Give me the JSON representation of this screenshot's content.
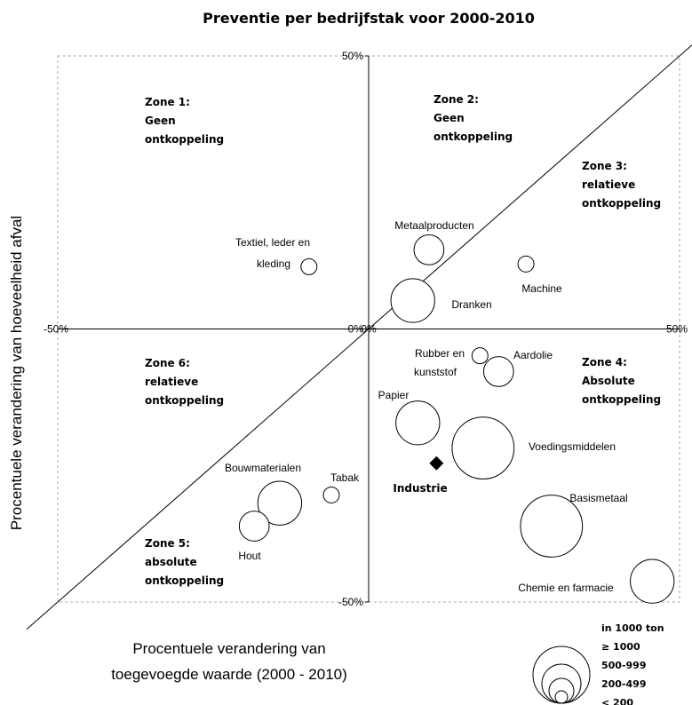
{
  "chart_data": {
    "type": "bubble",
    "title": "Preventie per bedrijfstak voor 2000-2010",
    "xlabel": [
      "Procentuele verandering van",
      "toegevoegde waarde (2000 - 2010)"
    ],
    "ylabel": "Procentuele verandering van hoeveelheid afval",
    "xlim": [
      -50,
      50
    ],
    "ylim": [
      -50,
      50
    ],
    "xticks": [
      {
        "value": -50,
        "label": "-50%"
      },
      {
        "value": 0,
        "label": "0%"
      },
      {
        "value": 50,
        "label": "50%"
      }
    ],
    "yticks": [
      {
        "value": -50,
        "label": "-50%"
      },
      {
        "value": 0,
        "label": "0%"
      },
      {
        "value": 50,
        "label": "50%"
      }
    ],
    "color": "#ffffff",
    "zones": [
      [
        "Zone 1:",
        "Geen",
        "ontkoppeling"
      ],
      [
        "Zone 2:",
        "Geen",
        "ontkoppeling"
      ],
      [
        "Zone 3:",
        "relatieve",
        "ontkoppeling"
      ],
      [
        "Zone 4:",
        "Absolute",
        "ontkoppeling"
      ],
      [
        "Zone 5:",
        "absolute",
        "ontkoppeling"
      ],
      [
        "Zone 6:",
        "relatieve",
        "ontkoppeling"
      ]
    ],
    "points": [
      {
        "label": [
          "Textiel, leder en",
          "kleding"
        ],
        "x": -9.6,
        "y": 11.4,
        "size": 100
      },
      {
        "label": [
          "Metaalproducten"
        ],
        "x": 9.7,
        "y": 14.5,
        "size": 350
      },
      {
        "label": [
          "Machine"
        ],
        "x": 25.3,
        "y": 11.9,
        "size": 100
      },
      {
        "label": [
          "Dranken"
        ],
        "x": 7.1,
        "y": 5.2,
        "size": 750
      },
      {
        "label": [
          "Rubber en",
          "kunststof"
        ],
        "x": 17.9,
        "y": -4.9,
        "size": 100
      },
      {
        "label": [
          "Aardolie"
        ],
        "x": 20.9,
        "y": -7.8,
        "size": 350
      },
      {
        "label": [
          "Papier"
        ],
        "x": 7.9,
        "y": -17.2,
        "size": 750
      },
      {
        "label": [
          "Voedingsmiddelen"
        ],
        "x": 18.4,
        "y": -21.8,
        "size": 1500
      },
      {
        "label": [
          "Bouwmaterialen"
        ],
        "x": -14.3,
        "y": -31.9,
        "size": 750
      },
      {
        "label": [
          "Tabak"
        ],
        "x": -6,
        "y": -30.4,
        "size": 100
      },
      {
        "label": [
          "Hout"
        ],
        "x": -18.4,
        "y": -36.1,
        "size": 350
      },
      {
        "label": [
          "Basismetaal"
        ],
        "x": 29.4,
        "y": -36.1,
        "size": 1500
      },
      {
        "label": [
          "Chemie en farmacie"
        ],
        "x": 45.6,
        "y": -46.2,
        "size": 750
      }
    ],
    "summary_point": {
      "label": "Industrie",
      "x": 10.9,
      "y": -24.6
    },
    "size_legend": {
      "title": "in 1000 ton",
      "labels": [
        "≥ 1000",
        "500-999",
        "200-499",
        "< 200"
      ]
    }
  }
}
